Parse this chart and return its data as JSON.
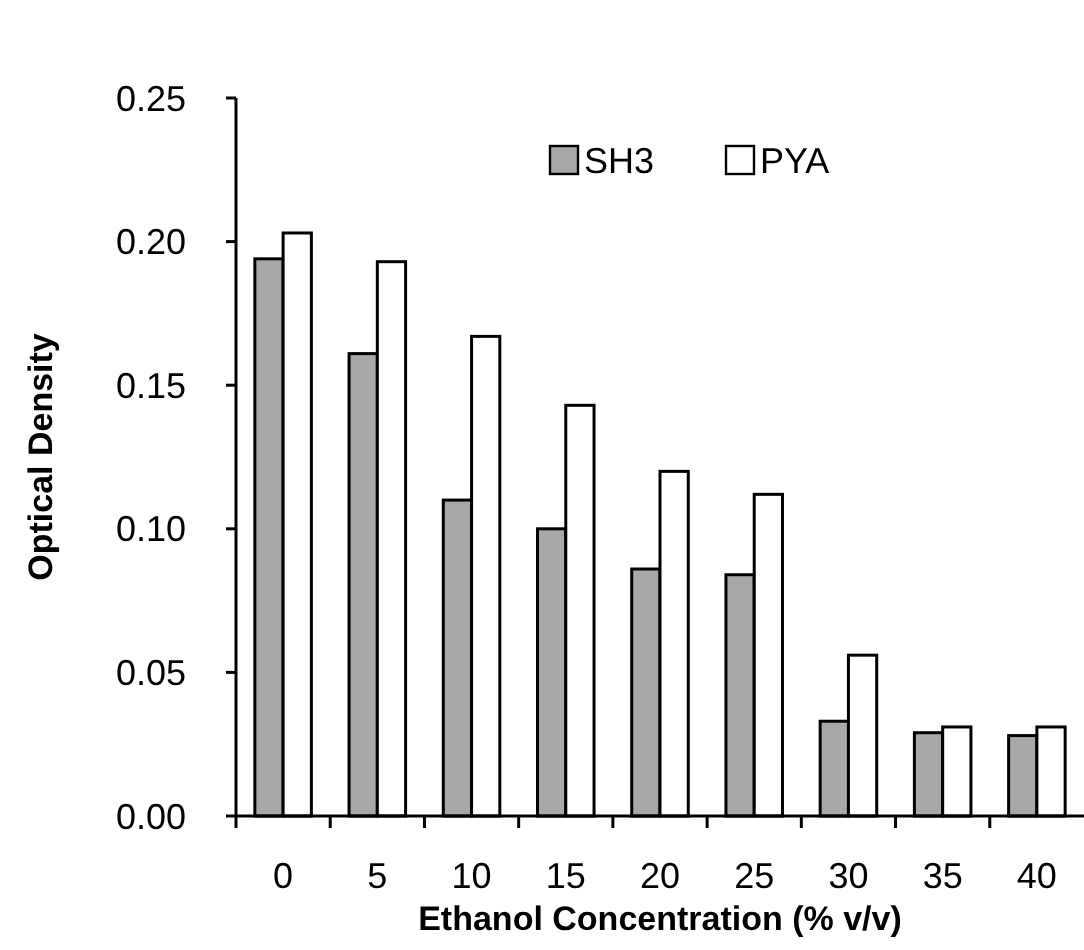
{
  "chart_data": {
    "type": "bar",
    "xlabel": "Ethanol Concentration (% v/v)",
    "ylabel": "Optical Density",
    "categories": [
      "0",
      "5",
      "10",
      "15",
      "20",
      "25",
      "30",
      "35",
      "40"
    ],
    "series": [
      {
        "name": "SH3",
        "color": "#a8a8a8",
        "values": [
          0.194,
          0.161,
          0.11,
          0.1,
          0.086,
          0.084,
          0.033,
          0.029,
          0.028
        ]
      },
      {
        "name": "PYA",
        "color": "#ffffff",
        "values": [
          0.203,
          0.193,
          0.167,
          0.143,
          0.12,
          0.112,
          0.056,
          0.031,
          0.031
        ]
      }
    ],
    "ylim": [
      0,
      0.25
    ],
    "yticks": [
      {
        "value": 0,
        "label": "0.00"
      },
      {
        "value": 0.05,
        "label": "0.05"
      },
      {
        "value": 0.1,
        "label": "0.10"
      },
      {
        "value": 0.15,
        "label": "0.15"
      },
      {
        "value": 0.2,
        "label": "0.20"
      },
      {
        "value": 0.25,
        "label": "0.25"
      }
    ],
    "grid": false,
    "legend": "top right"
  }
}
